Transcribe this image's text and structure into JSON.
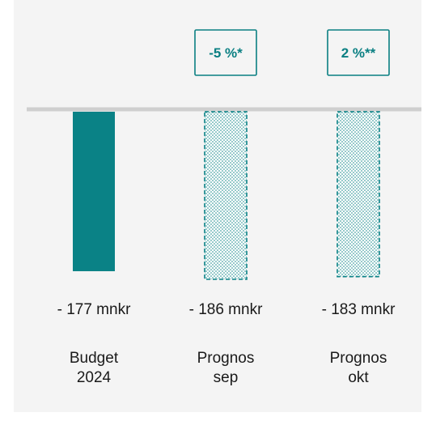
{
  "chart_data": {
    "type": "bar",
    "categories": [
      [
        "Budget",
        "2024"
      ],
      [
        "Prognos",
        "sep"
      ],
      [
        "Prognos",
        "okt"
      ]
    ],
    "values": [
      -177,
      -186,
      -183
    ],
    "value_labels": [
      "- 177 mnkr",
      "- 186 mnkr",
      "- 183 mnkr"
    ],
    "bar_styles": [
      "solid",
      "dotted",
      "dotted"
    ],
    "annotations": [
      {
        "category_index": 1,
        "text": "-5 %*"
      },
      {
        "category_index": 2,
        "text": "2 %**"
      }
    ],
    "unit": "mnkr",
    "ylim": [
      -200,
      0
    ],
    "grid": false,
    "colors": {
      "bar": "#0a8286",
      "baseline": "#cfcfcf",
      "panel": "#f4f4f4",
      "annotation": "#0a7f82"
    }
  }
}
